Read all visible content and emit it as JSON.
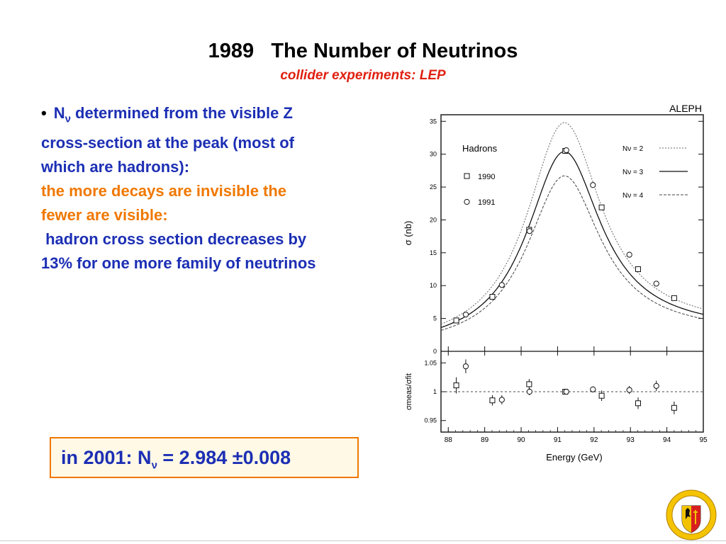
{
  "slide": {
    "title": "1989   The Number of Neutrinos",
    "subtitle": "collider experiments: LEP",
    "bullet": {
      "symbol": "N",
      "subscript": "ν",
      "line1_rest": " determined from the visible Z",
      "line2": "cross-section at the peak (most of",
      "line3": "which are hadrons):",
      "orange_line1": "the more decays are invisible the",
      "orange_line2": "fewer are visible:",
      "line4": " hadron cross section decreases by",
      "line5": "13% for one more family of neutrinos"
    },
    "result": {
      "prefix": "in 2001: N",
      "subscript": "ν",
      "value": " = 2.984 ±0.008"
    },
    "crest_text": "SCHOLA GENEVENSIS"
  },
  "colors": {
    "blue": "#1c2fb4",
    "orange": "#f07800",
    "red": "#e02010",
    "box_background": "#fff9e6"
  },
  "chart_data": {
    "type": "scatter",
    "experiment_label": "ALEPH",
    "panel_label": "Hadrons",
    "xlabel": "Energy (GeV)",
    "ylabel": "σ (nb)",
    "ratio_ylabel": "σmeas/σfit",
    "xlim": [
      87.8,
      95
    ],
    "ylim": [
      0,
      36
    ],
    "ratio_ylim": [
      0.93,
      1.07
    ],
    "x_ticks": [
      "88",
      "89",
      "90",
      "91",
      "92",
      "93",
      "94",
      "95"
    ],
    "y_ticks": [
      "0",
      "5",
      "10",
      "15",
      "20",
      "25",
      "30",
      "35"
    ],
    "ratio_y_ticks": [
      "0.95",
      "1",
      "1.05"
    ],
    "curve_legend": [
      "Nν = 2",
      "Nν = 3",
      "Nν = 4"
    ],
    "curve_peaks_nb": [
      34.8,
      30.4,
      26.7
    ],
    "mz": 91.19,
    "gamma_z": 2.49,
    "series": [
      {
        "name": "1990",
        "marker": "square",
        "x": [
          88.22,
          89.21,
          90.22,
          91.21,
          92.21,
          93.21,
          94.2
        ],
        "y": [
          4.7,
          8.3,
          18.5,
          30.5,
          21.9,
          12.5,
          8.1
        ],
        "ratio": [
          1.011,
          0.985,
          1.013,
          1.0,
          0.993,
          0.98,
          0.972
        ],
        "ratio_err": [
          0.014,
          0.009,
          0.009,
          0.004,
          0.009,
          0.01,
          0.011
        ]
      },
      {
        "name": "1991",
        "marker": "circle",
        "x": [
          88.48,
          89.47,
          90.23,
          91.24,
          91.97,
          92.97,
          93.71
        ],
        "y": [
          5.6,
          10.1,
          18.3,
          30.6,
          25.3,
          14.7,
          10.3
        ],
        "ratio": [
          1.044,
          0.986,
          1.0,
          1.0,
          1.004,
          1.003,
          1.01
        ],
        "ratio_err": [
          0.012,
          0.008,
          0.006,
          0.003,
          0.005,
          0.007,
          0.009
        ]
      }
    ]
  }
}
